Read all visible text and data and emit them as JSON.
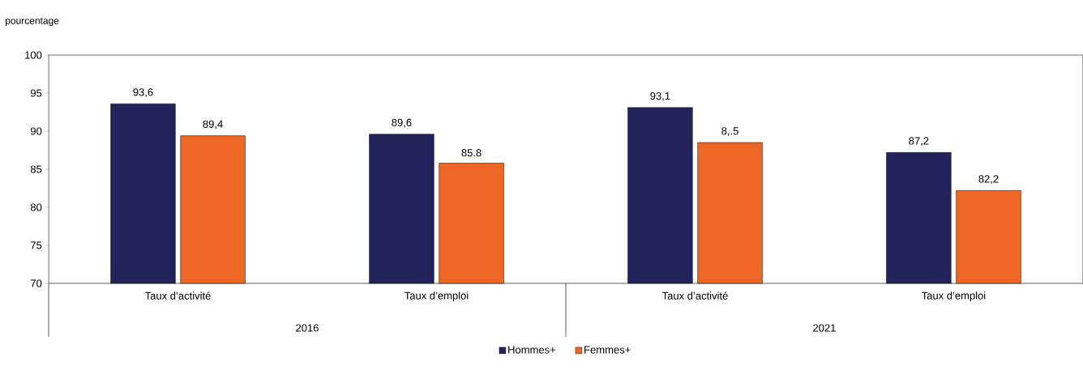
{
  "chart_data": {
    "type": "bar",
    "ylabel": "pourcentage",
    "categories": [
      "Taux d’activité",
      "Taux d’emploi",
      "Taux d’activité",
      "Taux d’emploi"
    ],
    "series": [
      {
        "name": "Hommes+",
        "color": "#22235b",
        "values": [
          93.6,
          89.6,
          93.1,
          87.2
        ],
        "value_labels": [
          "93,6",
          "89,6",
          "93,1",
          "87,2"
        ]
      },
      {
        "name": "Femmes+",
        "color": "#ef6724",
        "values": [
          89.4,
          85.8,
          88.5,
          82.2
        ],
        "value_labels": [
          "89,4",
          "85.8",
          "8,.5",
          "82,2"
        ]
      }
    ],
    "annotations": [
      "2016",
      "2021"
    ],
    "ylim": [
      70,
      100
    ],
    "yticks": [
      70,
      75,
      80,
      85,
      90,
      95,
      100
    ],
    "grid": false,
    "legend": "bottom"
  }
}
